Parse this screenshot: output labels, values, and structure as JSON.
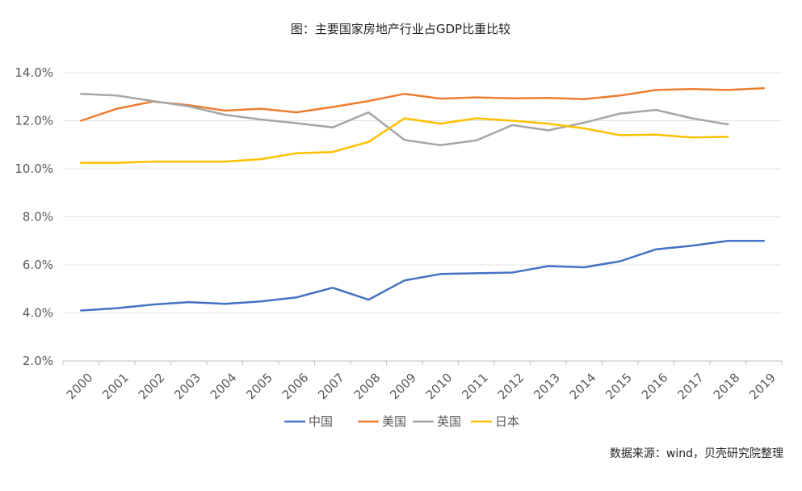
{
  "chart_data": {
    "type": "line",
    "title": "图：主要国家房地产行业占GDP比重比较",
    "xlabel": "",
    "ylabel": "",
    "ylim": [
      2.0,
      14.0
    ],
    "y_ticks": [
      "14.0%",
      "12.0%",
      "10.0%",
      "8.0%",
      "6.0%",
      "4.0%",
      "2.0%"
    ],
    "y_tick_values": [
      14,
      12,
      10,
      8,
      6,
      4,
      2
    ],
    "categories": [
      "2000",
      "2001",
      "2002",
      "2003",
      "2004",
      "2005",
      "2006",
      "2007",
      "2008",
      "2009",
      "2010",
      "2011",
      "2012",
      "2013",
      "2014",
      "2015",
      "2016",
      "2017",
      "2018",
      "2019"
    ],
    "grid": "horizontal",
    "legend_position": "bottom",
    "series": [
      {
        "name": "中国",
        "color": "#4472C4",
        "values": [
          4.1,
          4.2,
          4.35,
          4.45,
          4.38,
          4.48,
          4.65,
          5.05,
          4.55,
          5.35,
          5.62,
          5.65,
          5.68,
          5.95,
          5.9,
          6.15,
          6.65,
          6.8,
          7.0,
          7.0
        ]
      },
      {
        "name": "美国",
        "color": "#ED7D31",
        "values": [
          12.0,
          12.5,
          12.8,
          12.65,
          12.42,
          12.5,
          12.35,
          12.57,
          12.82,
          13.12,
          12.92,
          12.97,
          12.93,
          12.95,
          12.9,
          13.05,
          13.28,
          13.32,
          13.28,
          13.35
        ]
      },
      {
        "name": "英国",
        "color": "#A5A5A5",
        "values": [
          13.12,
          13.05,
          12.82,
          12.6,
          12.25,
          12.05,
          11.9,
          11.72,
          12.35,
          11.2,
          10.98,
          11.18,
          11.82,
          11.6,
          11.92,
          12.3,
          12.45,
          12.1,
          11.85,
          null
        ]
      },
      {
        "name": "日本",
        "color": "#FFC000",
        "values": [
          10.25,
          10.25,
          10.3,
          10.3,
          10.3,
          10.4,
          10.65,
          10.7,
          11.12,
          12.1,
          11.88,
          12.1,
          12.0,
          11.88,
          11.68,
          11.4,
          11.42,
          11.3,
          11.33,
          null
        ]
      }
    ]
  },
  "source_note": "数据来源：wind，贝壳研究院整理"
}
